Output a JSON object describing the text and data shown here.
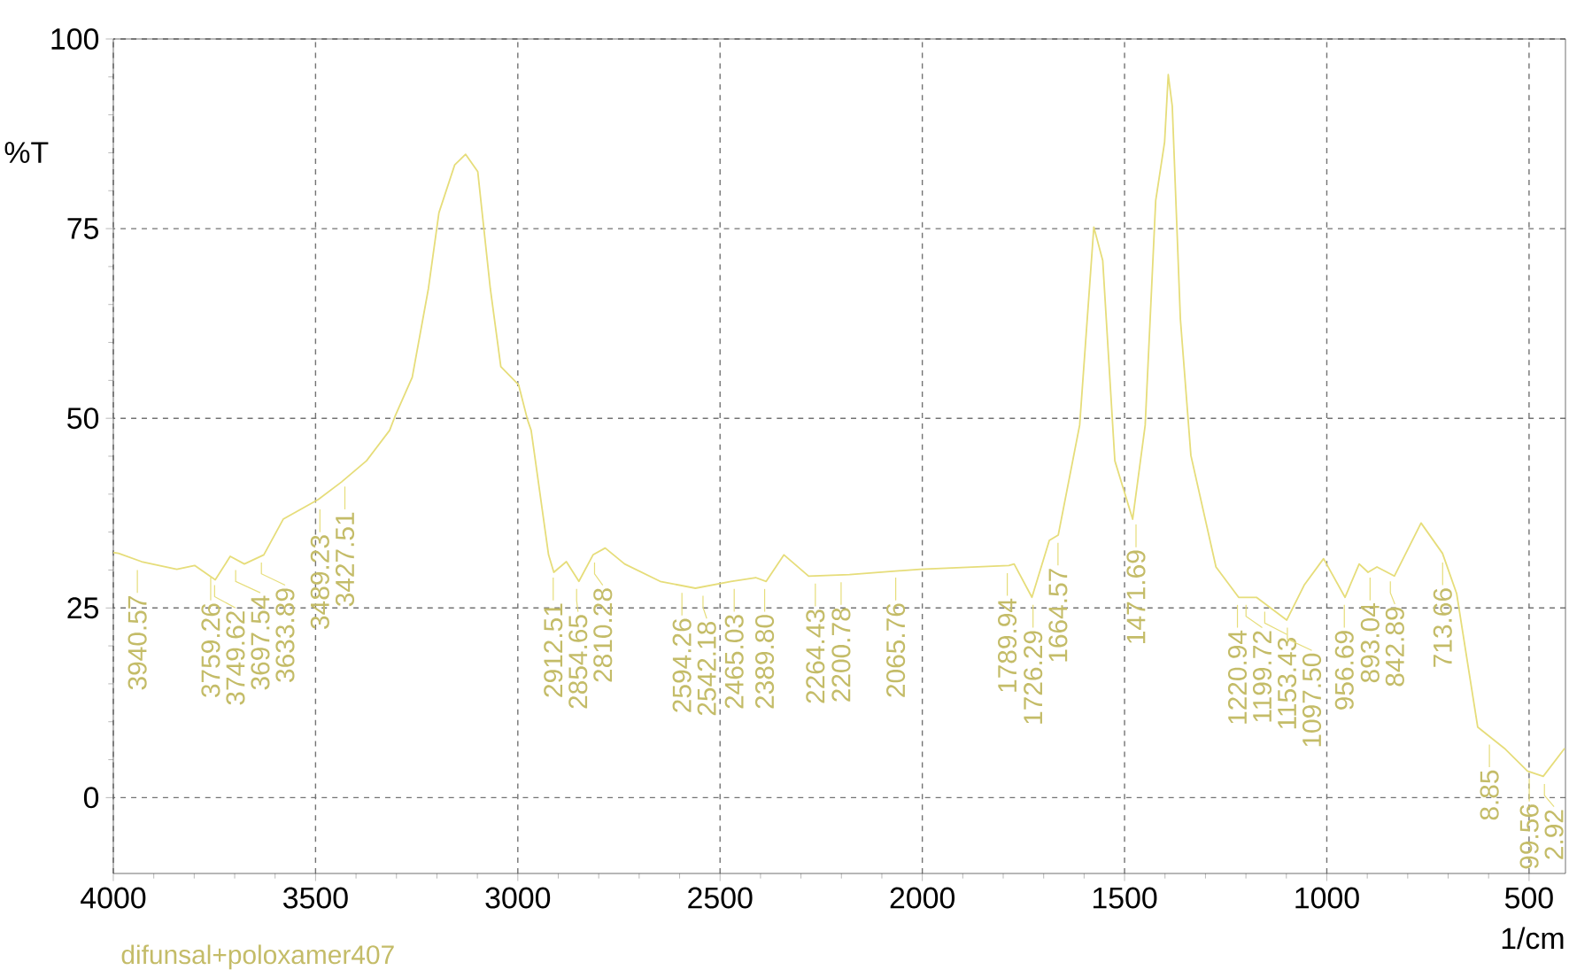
{
  "chart_data": {
    "type": "line",
    "xlabel": "1/cm",
    "ylabel": "%T",
    "xlim": [
      4000,
      410
    ],
    "ylim": [
      -10,
      100
    ],
    "xticks": [
      4000,
      3500,
      3000,
      2500,
      2000,
      1500,
      1000,
      500
    ],
    "yticks": [
      0,
      25,
      50,
      75,
      100
    ],
    "grid": true,
    "series": [
      {
        "color": "#e6dd7a",
        "x": [
          4000,
          3987,
          3930,
          3843,
          3799,
          3748,
          3711,
          3676,
          3628,
          3580,
          3493,
          3436,
          3374,
          3317,
          3304,
          3261,
          3221,
          3195,
          3156,
          3129,
          3099,
          3068,
          3042,
          2998,
          2976,
          2967,
          2924,
          2911,
          2880,
          2849,
          2814,
          2784,
          2736,
          2648,
          2561,
          2473,
          2412,
          2386,
          2342,
          2281,
          2180,
          2005,
          1786,
          1773,
          1729,
          1686,
          1664,
          1611,
          1576,
          1554,
          1524,
          1480,
          1449,
          1423,
          1401,
          1392,
          1382,
          1362,
          1336,
          1274,
          1218,
          1174,
          1099,
          1056,
          1008,
          955,
          920,
          898,
          876,
          833,
          767,
          714,
          679,
          627,
          561,
          504,
          465,
          412
        ],
        "values": [
          32.3,
          32.2,
          31.1,
          30.1,
          30.6,
          28.7,
          31.8,
          30.8,
          32.0,
          36.7,
          39.3,
          41.6,
          44.4,
          48.4,
          50.2,
          55.4,
          67.1,
          77.1,
          83.4,
          84.8,
          82.5,
          67.1,
          56.8,
          54.4,
          49.8,
          48.4,
          32.0,
          29.7,
          31.1,
          28.5,
          32.0,
          32.9,
          30.8,
          28.5,
          27.6,
          28.5,
          29.0,
          28.5,
          32.0,
          29.2,
          29.4,
          30.1,
          30.6,
          30.8,
          26.4,
          33.9,
          34.6,
          49.1,
          75.2,
          70.8,
          44.4,
          36.7,
          49.1,
          78.7,
          86.4,
          95.3,
          91.1,
          63.1,
          45.1,
          30.4,
          26.4,
          26.4,
          23.4,
          28.0,
          31.5,
          26.4,
          30.8,
          29.7,
          30.4,
          29.2,
          36.2,
          32.2,
          26.9,
          9.3,
          6.5,
          3.5,
          2.8,
          6.5
        ]
      }
    ],
    "annotations": [
      {
        "text": "3940.57",
        "x": 3940.57,
        "y": 31
      },
      {
        "text": "3759.26",
        "x": 3759.26,
        "y": 30
      },
      {
        "text": "3749.62",
        "x": 3749.62,
        "y": 29
      },
      {
        "text": "3697.54",
        "x": 3697.54,
        "y": 31
      },
      {
        "text": "3633.89",
        "x": 3633.89,
        "y": 32
      },
      {
        "text": "3489.23",
        "x": 3489.23,
        "y": 39
      },
      {
        "text": "3427.51",
        "x": 3427.51,
        "y": 42
      },
      {
        "text": "2912.51",
        "x": 2912.51,
        "y": 30
      },
      {
        "text": "2854.65",
        "x": 2854.65,
        "y": 28.5
      },
      {
        "text": "2810.28",
        "x": 2810.28,
        "y": 32
      },
      {
        "text": "2594.26",
        "x": 2594.26,
        "y": 28
      },
      {
        "text": "2542.18",
        "x": 2542.18,
        "y": 27.6
      },
      {
        "text": "2465.03",
        "x": 2465.03,
        "y": 28.5
      },
      {
        "text": "2389.80",
        "x": 2389.8,
        "y": 28.5
      },
      {
        "text": "2264.43",
        "x": 2264.43,
        "y": 29.2
      },
      {
        "text": "2200.78",
        "x": 2200.78,
        "y": 29.4
      },
      {
        "text": "2065.76",
        "x": 2065.76,
        "y": 30
      },
      {
        "text": "1789.94",
        "x": 1789.94,
        "y": 30.6
      },
      {
        "text": "1726.29",
        "x": 1726.29,
        "y": 26.4
      },
      {
        "text": "1664.57",
        "x": 1664.57,
        "y": 34.6
      },
      {
        "text": "1471.69",
        "x": 1471.69,
        "y": 37
      },
      {
        "text": "1220.94",
        "x": 1220.94,
        "y": 26.4
      },
      {
        "text": "1199.72",
        "x": 1199.72,
        "y": 26.4
      },
      {
        "text": "1153.43",
        "x": 1153.43,
        "y": 25.5
      },
      {
        "text": "1097.50",
        "x": 1097.5,
        "y": 23.4
      },
      {
        "text": "956.69",
        "x": 956.69,
        "y": 26.4
      },
      {
        "text": "893.04",
        "x": 893.04,
        "y": 30
      },
      {
        "text": "842.89",
        "x": 842.89,
        "y": 29.5
      },
      {
        "text": "713.66",
        "x": 713.66,
        "y": 32
      },
      {
        "text": "8.85",
        "x": 598,
        "y": 8
      },
      {
        "text": "99.56",
        "x": 499.56,
        "y": 3.5
      },
      {
        "text": "2.92",
        "x": 462,
        "y": 2.8
      },
      "difunsal+poloxamer407"
    ]
  }
}
